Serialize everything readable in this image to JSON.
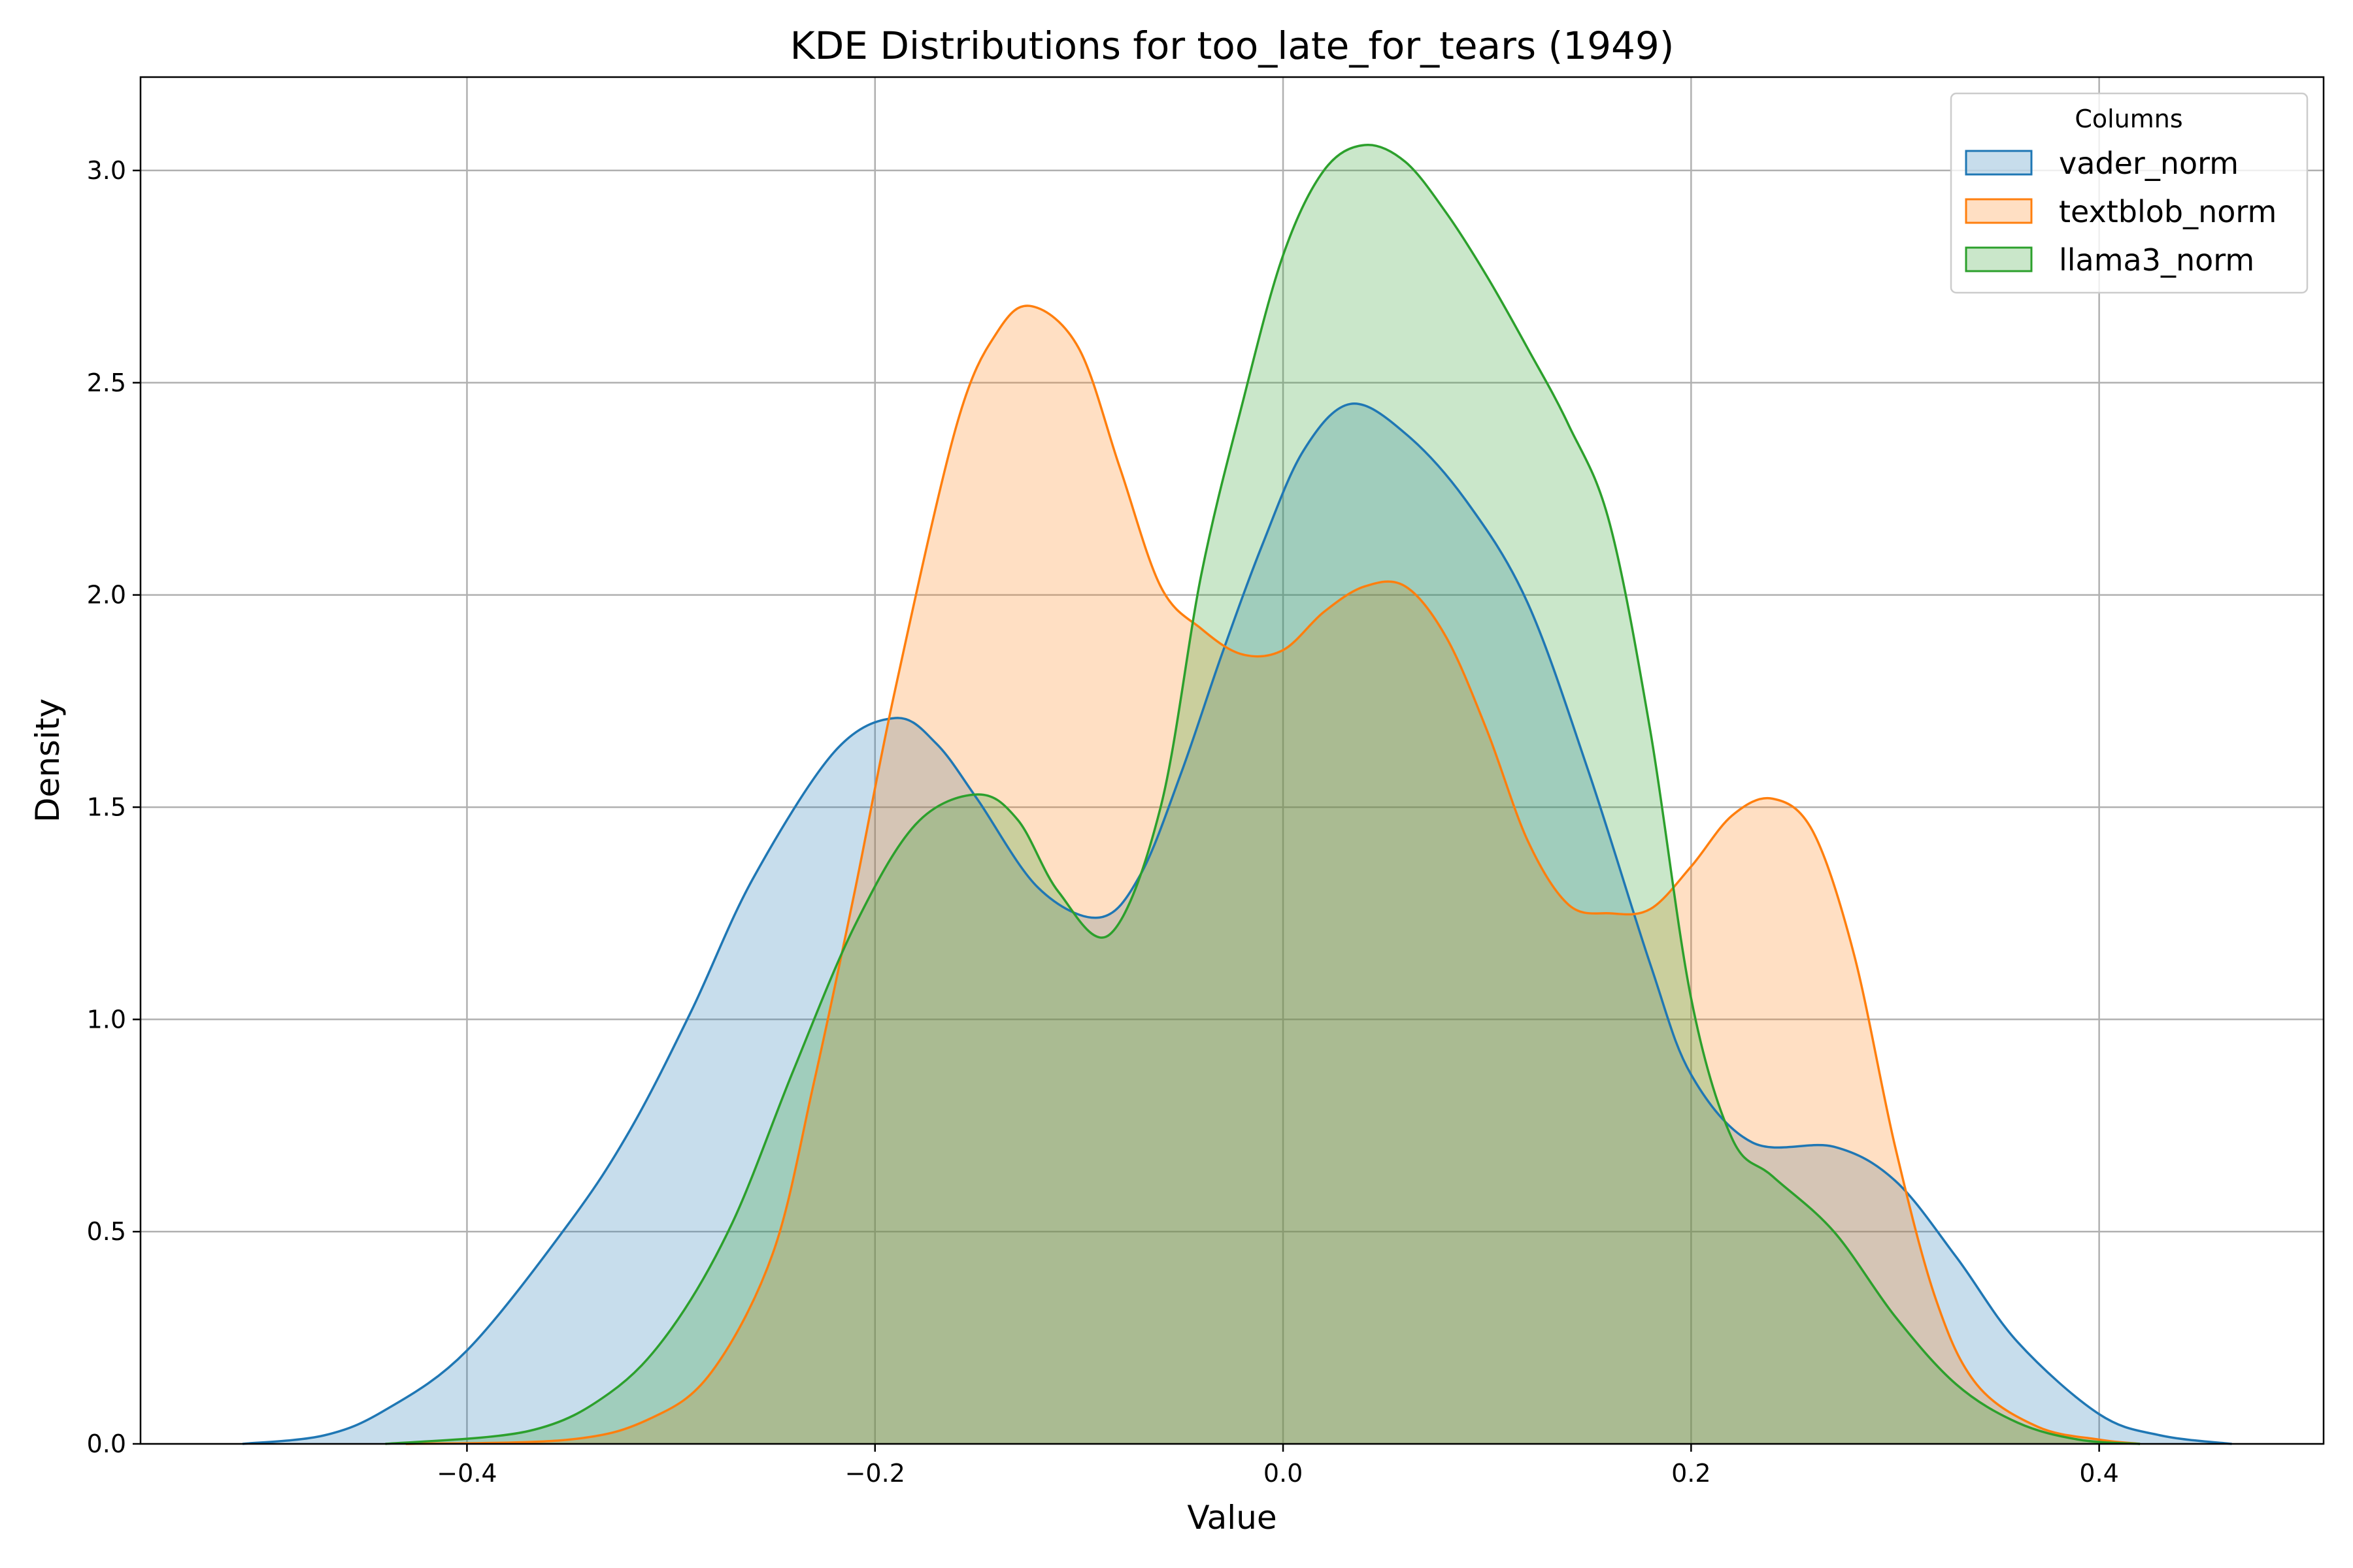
{
  "chart_data": {
    "type": "area",
    "title": "KDE Distributions for too_late_for_tears (1949)",
    "xlabel": "Value",
    "ylabel": "Density",
    "xlim": [
      -0.56,
      0.51
    ],
    "ylim": [
      0,
      3.22
    ],
    "xticks": [
      -0.4,
      -0.2,
      0.0,
      0.2,
      0.4
    ],
    "xtick_labels": [
      "−0.4",
      "−0.2",
      "0.0",
      "0.2",
      "0.4"
    ],
    "yticks": [
      0.0,
      0.5,
      1.0,
      1.5,
      2.0,
      2.5,
      3.0
    ],
    "ytick_labels": [
      "0.0",
      "0.5",
      "1.0",
      "1.5",
      "2.0",
      "2.5",
      "3.0"
    ],
    "grid": true,
    "legend": {
      "title": "Columns",
      "placement": "top-right"
    },
    "series": [
      {
        "name": "vader_norm",
        "color": "#1f77b4",
        "x": [
          -0.51,
          -0.47,
          -0.44,
          -0.4,
          -0.35,
          -0.32,
          -0.29,
          -0.26,
          -0.22,
          -0.19,
          -0.17,
          -0.15,
          -0.12,
          -0.09,
          -0.07,
          -0.05,
          -0.03,
          -0.01,
          0.01,
          0.033,
          0.06,
          0.09,
          0.12,
          0.15,
          0.18,
          0.2,
          0.23,
          0.27,
          0.3,
          0.33,
          0.36,
          0.4,
          0.43,
          0.465
        ],
        "y": [
          0.0,
          0.02,
          0.08,
          0.22,
          0.52,
          0.74,
          1.02,
          1.33,
          1.63,
          1.71,
          1.65,
          1.52,
          1.31,
          1.24,
          1.34,
          1.58,
          1.86,
          2.12,
          2.34,
          2.45,
          2.38,
          2.22,
          1.98,
          1.58,
          1.13,
          0.87,
          0.71,
          0.7,
          0.62,
          0.44,
          0.24,
          0.07,
          0.02,
          0.0
        ]
      },
      {
        "name": "textblob_norm",
        "color": "#ff7f0e",
        "x": [
          -0.43,
          -0.35,
          -0.31,
          -0.28,
          -0.25,
          -0.23,
          -0.21,
          -0.19,
          -0.16,
          -0.14,
          -0.123,
          -0.1,
          -0.08,
          -0.06,
          -0.04,
          -0.02,
          0.0,
          0.02,
          0.04,
          0.06,
          0.08,
          0.1,
          0.12,
          0.14,
          0.16,
          0.18,
          0.2,
          0.22,
          0.24,
          0.26,
          0.28,
          0.3,
          0.32,
          0.34,
          0.37,
          0.4,
          0.42
        ],
        "y": [
          0.0,
          0.01,
          0.06,
          0.17,
          0.45,
          0.85,
          1.3,
          1.78,
          2.4,
          2.62,
          2.68,
          2.58,
          2.3,
          2.02,
          1.92,
          1.86,
          1.87,
          1.96,
          2.02,
          2.02,
          1.9,
          1.68,
          1.42,
          1.27,
          1.25,
          1.26,
          1.36,
          1.48,
          1.52,
          1.44,
          1.15,
          0.7,
          0.34,
          0.14,
          0.04,
          0.01,
          0.0
        ]
      },
      {
        "name": "llama3_norm",
        "color": "#2ca02c",
        "x": [
          -0.44,
          -0.37,
          -0.33,
          -0.3,
          -0.27,
          -0.24,
          -0.21,
          -0.18,
          -0.15,
          -0.13,
          -0.11,
          -0.085,
          -0.06,
          -0.04,
          -0.02,
          0.0,
          0.02,
          0.04,
          0.06,
          0.08,
          0.1,
          0.12,
          0.14,
          0.16,
          0.18,
          0.2,
          0.22,
          0.24,
          0.27,
          0.3,
          0.33,
          0.36,
          0.39,
          0.42
        ],
        "y": [
          0.0,
          0.03,
          0.12,
          0.27,
          0.52,
          0.88,
          1.22,
          1.46,
          1.53,
          1.47,
          1.3,
          1.2,
          1.5,
          2.05,
          2.45,
          2.8,
          3.0,
          3.06,
          3.02,
          2.9,
          2.75,
          2.58,
          2.4,
          2.17,
          1.68,
          1.05,
          0.72,
          0.63,
          0.5,
          0.3,
          0.14,
          0.05,
          0.01,
          0.0
        ]
      }
    ]
  }
}
